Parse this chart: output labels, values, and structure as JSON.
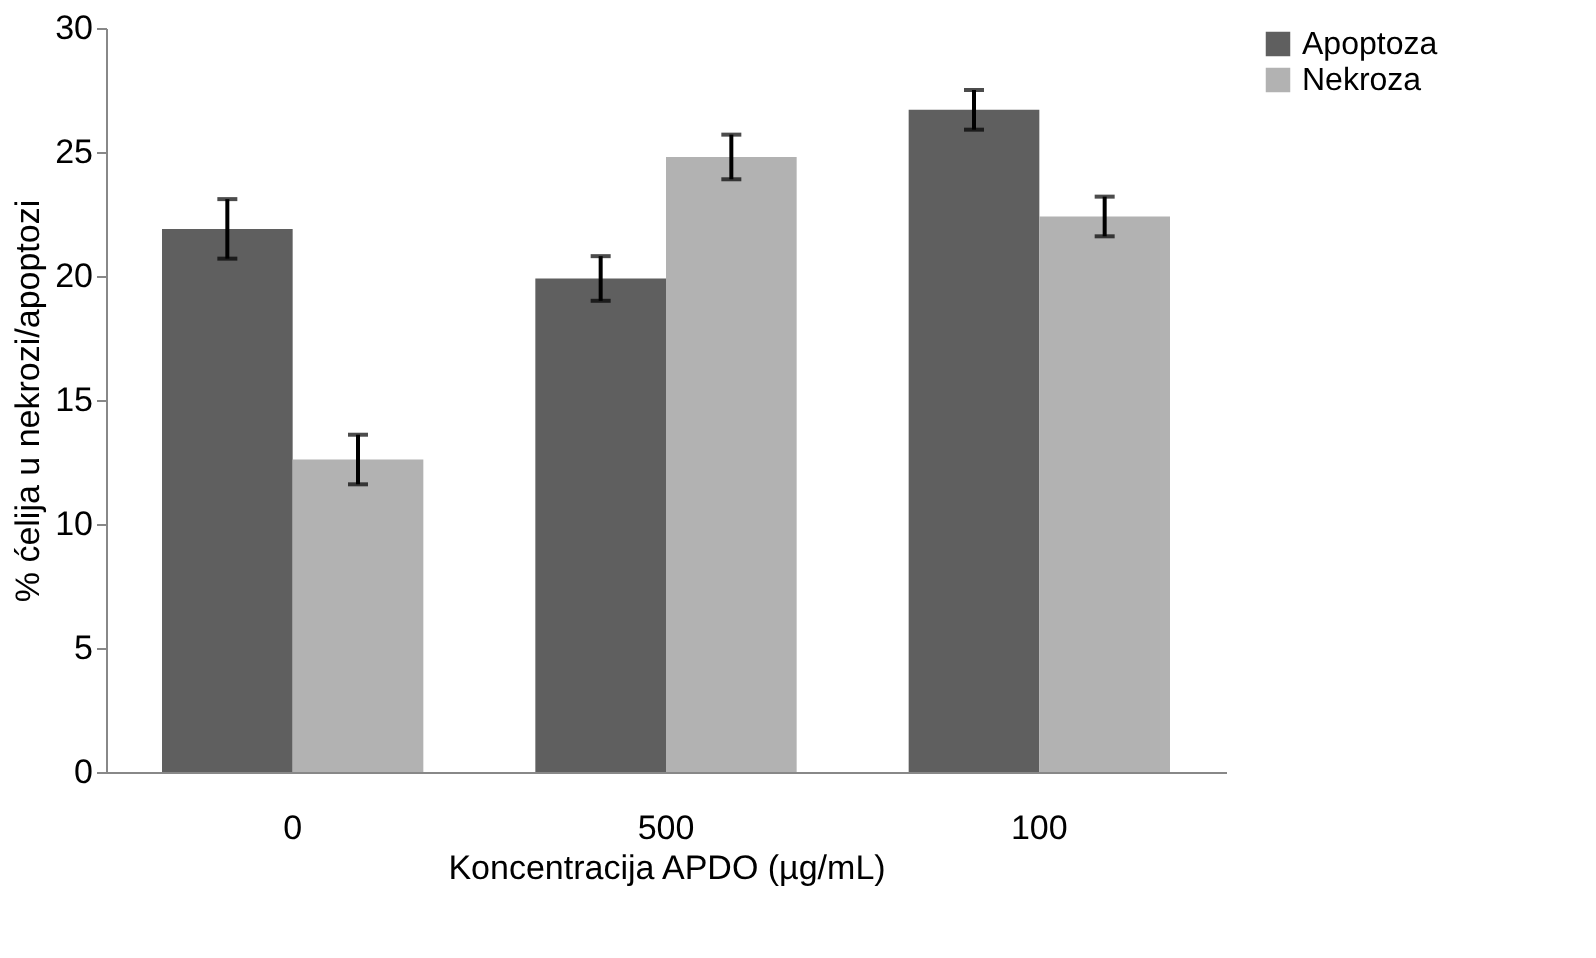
{
  "chart_data": {
    "type": "bar",
    "xlabel": "Koncentracija APDO (µg/mL)",
    "ylabel": "% ćelija u nekrozi/apoptozi",
    "categories": [
      "0",
      "500",
      "100"
    ],
    "series": [
      {
        "name": "Apoptoza",
        "color": "#5f5f5f",
        "values": [
          21.9,
          19.9,
          26.7
        ],
        "errors": [
          1.2,
          0.9,
          0.8
        ]
      },
      {
        "name": "Nekroza",
        "color": "#b2b2b2",
        "values": [
          12.6,
          24.8,
          22.4
        ],
        "errors": [
          1.0,
          0.9,
          0.8
        ]
      }
    ],
    "ylim": [
      0,
      30
    ],
    "yticks": [
      0,
      5,
      10,
      15,
      20,
      25,
      30
    ],
    "grid": false,
    "legend": "right"
  }
}
